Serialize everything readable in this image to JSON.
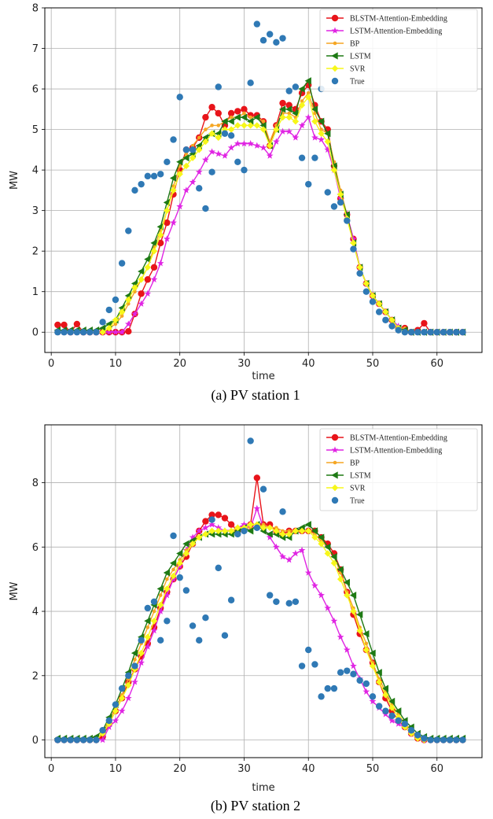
{
  "colors": {
    "BLSTM-Attention-Embedding": "#e8141a",
    "LSTM-Attention-Embedding": "#e025e3",
    "BP": "#f5a623",
    "LSTM": "#1e7a14",
    "SVR": "#f7f71a",
    "True": "#2f79b5"
  },
  "chart_data": [
    {
      "type": "line",
      "caption": "(a) PV station 1",
      "xlabel": "time",
      "ylabel": "MW",
      "xlim": [
        -1,
        67
      ],
      "ylim": [
        -0.5,
        8
      ],
      "xticks": [
        0,
        10,
        20,
        30,
        40,
        50,
        60
      ],
      "yticks": [
        0,
        1,
        2,
        3,
        4,
        5,
        6,
        7,
        8
      ],
      "grid": true,
      "legend_position": "top-right",
      "x_start": 1,
      "series": [
        {
          "name": "BLSTM-Attention-Embedding",
          "marker": "circle",
          "values": [
            0.18,
            0.18,
            0,
            0.2,
            0,
            0,
            0,
            0,
            0,
            0,
            0,
            0.02,
            0.45,
            0.95,
            1.3,
            1.6,
            2.2,
            2.7,
            3.4,
            4.0,
            4.5,
            4.55,
            4.8,
            5.3,
            5.55,
            5.4,
            5.1,
            5.4,
            5.45,
            5.5,
            5.35,
            5.35,
            5.2,
            4.6,
            5.1,
            5.65,
            5.6,
            5.5,
            5.9,
            6.1,
            5.6,
            5.2,
            5.0,
            4.1,
            3.3,
            2.9,
            2.3,
            1.6,
            1.2,
            0.9,
            0.7,
            0.5,
            0.3,
            0.1,
            0.1,
            0,
            0.05,
            0.22,
            0,
            0,
            0,
            0,
            0,
            0
          ]
        },
        {
          "name": "LSTM-Attention-Embedding",
          "marker": "star",
          "values": [
            0,
            0,
            0,
            0,
            0,
            0,
            0,
            0,
            0,
            0,
            0,
            0.2,
            0.45,
            0.7,
            0.95,
            1.3,
            1.7,
            2.3,
            2.7,
            3.1,
            3.5,
            3.7,
            3.95,
            4.25,
            4.45,
            4.4,
            4.35,
            4.55,
            4.65,
            4.65,
            4.65,
            4.6,
            4.55,
            4.35,
            4.7,
            4.95,
            4.95,
            4.8,
            5.1,
            5.3,
            4.8,
            4.75,
            4.5,
            4.0,
            3.3,
            2.9,
            2.3,
            1.6,
            1.2,
            0.9,
            0.7,
            0.5,
            0.3,
            0.15,
            0.05,
            0,
            0,
            0,
            0,
            0,
            0,
            0,
            0,
            0
          ]
        },
        {
          "name": "BP",
          "marker": "dot",
          "values": [
            0,
            0,
            0,
            0,
            0,
            0,
            0,
            0,
            0.1,
            0.2,
            0.4,
            0.7,
            1.0,
            1.3,
            1.6,
            2.1,
            2.5,
            3.0,
            3.6,
            4.1,
            4.4,
            4.6,
            4.8,
            5.0,
            5.1,
            5.1,
            5.2,
            5.3,
            5.3,
            5.4,
            5.3,
            5.3,
            5.2,
            4.7,
            5.1,
            5.4,
            5.4,
            5.3,
            5.7,
            5.9,
            5.4,
            5.0,
            4.9,
            4.2,
            3.5,
            2.9,
            2.2,
            1.6,
            1.2,
            0.9,
            0.7,
            0.5,
            0.3,
            0.1,
            0.1,
            0,
            0,
            0,
            0,
            0,
            0,
            0,
            0,
            0
          ]
        },
        {
          "name": "LSTM",
          "marker": "triangle-left",
          "values": [
            0.05,
            0.05,
            0.05,
            0.05,
            0.05,
            0.05,
            0.05,
            0.1,
            0.2,
            0.3,
            0.6,
            0.9,
            1.2,
            1.5,
            1.8,
            2.2,
            2.6,
            3.2,
            3.8,
            4.2,
            4.3,
            4.4,
            4.6,
            4.8,
            4.9,
            4.9,
            5.2,
            5.2,
            5.3,
            5.3,
            5.2,
            5.3,
            5.1,
            4.6,
            5.0,
            5.5,
            5.5,
            5.4,
            6.0,
            6.2,
            5.5,
            5.2,
            4.9,
            4.1,
            3.4,
            2.9,
            2.2,
            1.6,
            1.2,
            0.9,
            0.7,
            0.5,
            0.3,
            0.1,
            0.05,
            0,
            0,
            0,
            0,
            0,
            0,
            0,
            0,
            0
          ]
        },
        {
          "name": "SVR",
          "marker": "diamond",
          "values": [
            0,
            0,
            0,
            0,
            0,
            0,
            0,
            0,
            0.1,
            0.3,
            0.5,
            0.8,
            1.1,
            1.3,
            1.6,
            2.0,
            2.4,
            3.0,
            3.5,
            3.9,
            4.1,
            4.3,
            4.5,
            4.7,
            4.9,
            4.8,
            5.0,
            5.0,
            5.1,
            5.1,
            5.1,
            5.1,
            5.0,
            4.6,
            5.0,
            5.3,
            5.3,
            5.2,
            5.6,
            5.8,
            5.2,
            4.9,
            4.7,
            4.0,
            3.4,
            2.8,
            2.2,
            1.6,
            1.2,
            0.9,
            0.7,
            0.5,
            0.3,
            0.1,
            0,
            0,
            0,
            0,
            0,
            0,
            0,
            0,
            0,
            0
          ]
        },
        {
          "name": "True",
          "marker": "scatter",
          "values": [
            0,
            0,
            0,
            0,
            0,
            0,
            0,
            0.25,
            0.55,
            0.8,
            1.7,
            2.5,
            3.5,
            3.65,
            3.85,
            3.85,
            3.9,
            4.2,
            4.75,
            5.8,
            4.5,
            4.5,
            3.55,
            3.05,
            3.95,
            6.05,
            4.9,
            4.85,
            4.2,
            4.0,
            6.15,
            7.6,
            7.2,
            7.35,
            7.15,
            7.25,
            5.95,
            6.05,
            4.3,
            3.65,
            4.3,
            6.0,
            3.45,
            3.1,
            3.2,
            2.75,
            2.05,
            1.45,
            1.0,
            0.75,
            0.5,
            0.3,
            0.15,
            0.05,
            0,
            0,
            0,
            0,
            0,
            0,
            0,
            0,
            0,
            0
          ]
        }
      ]
    },
    {
      "type": "line",
      "caption": "(b) PV station 2",
      "xlabel": "time",
      "ylabel": "MW",
      "xlim": [
        -1,
        67
      ],
      "ylim": [
        -0.55,
        9.8
      ],
      "xticks": [
        0,
        10,
        20,
        30,
        40,
        50,
        60
      ],
      "yticks": [
        0,
        2,
        4,
        6,
        8
      ],
      "grid": true,
      "legend_position": "top-right",
      "x_start": 1,
      "series": [
        {
          "name": "BLSTM-Attention-Embedding",
          "marker": "circle",
          "values": [
            0,
            0,
            0,
            0,
            0,
            0,
            0,
            0.1,
            0.5,
            0.9,
            1.3,
            1.8,
            2.2,
            2.6,
            3.0,
            3.5,
            4.1,
            4.6,
            5.0,
            5.4,
            5.7,
            6.1,
            6.5,
            6.8,
            7.0,
            7.0,
            6.9,
            6.7,
            6.5,
            6.6,
            6.7,
            8.15,
            6.7,
            6.7,
            6.5,
            6.4,
            6.5,
            6.5,
            6.5,
            6.5,
            6.5,
            6.3,
            6.1,
            5.8,
            5.3,
            4.6,
            3.9,
            3.3,
            2.8,
            2.4,
            1.8,
            1.3,
            0.9,
            0.6,
            0.4,
            0.2,
            0.05,
            0,
            0,
            0,
            0,
            0,
            0,
            0
          ]
        },
        {
          "name": "LSTM-Attention-Embedding",
          "marker": "star",
          "values": [
            0,
            0,
            0,
            0,
            0,
            0,
            0,
            0,
            0.4,
            0.6,
            0.9,
            1.3,
            1.8,
            2.4,
            2.9,
            3.4,
            4.0,
            4.5,
            5.0,
            5.4,
            5.9,
            6.3,
            6.5,
            6.6,
            6.7,
            6.6,
            6.5,
            6.5,
            6.6,
            6.7,
            6.6,
            7.2,
            6.6,
            6.3,
            6.0,
            5.7,
            5.6,
            5.8,
            5.9,
            5.2,
            4.8,
            4.5,
            4.1,
            3.7,
            3.2,
            2.8,
            2.3,
            1.9,
            1.5,
            1.2,
            1.0,
            0.8,
            0.6,
            0.5,
            0.4,
            0.2,
            0.1,
            0,
            0,
            0,
            0,
            0,
            0,
            0
          ]
        },
        {
          "name": "BP",
          "marker": "dot",
          "values": [
            0,
            0,
            0,
            0,
            0,
            0,
            0,
            0.2,
            0.6,
            1.0,
            1.4,
            1.9,
            2.5,
            3.0,
            3.5,
            4.0,
            4.5,
            5.0,
            5.3,
            5.6,
            5.9,
            6.1,
            6.3,
            6.4,
            6.5,
            6.5,
            6.5,
            6.5,
            6.6,
            6.6,
            6.6,
            6.6,
            6.7,
            6.6,
            6.6,
            6.5,
            6.5,
            6.5,
            6.5,
            6.5,
            6.4,
            6.2,
            6.0,
            5.7,
            5.2,
            4.6,
            4.1,
            3.5,
            3.0,
            2.4,
            1.9,
            1.5,
            1.1,
            0.8,
            0.5,
            0.3,
            0.1,
            0,
            0,
            0,
            0,
            0,
            0,
            0
          ]
        },
        {
          "name": "LSTM",
          "marker": "triangle-left",
          "values": [
            0.05,
            0.05,
            0.05,
            0.05,
            0.05,
            0.05,
            0.1,
            0.3,
            0.7,
            1.1,
            1.6,
            2.1,
            2.7,
            3.2,
            3.7,
            4.2,
            4.7,
            5.2,
            5.5,
            5.8,
            6.1,
            6.2,
            6.3,
            6.4,
            6.4,
            6.4,
            6.4,
            6.4,
            6.5,
            6.6,
            6.5,
            6.7,
            6.5,
            6.4,
            6.4,
            6.3,
            6.3,
            6.5,
            6.6,
            6.7,
            6.5,
            6.3,
            6.0,
            5.7,
            5.3,
            4.9,
            4.5,
            3.9,
            3.3,
            2.7,
            2.1,
            1.6,
            1.2,
            0.9,
            0.6,
            0.4,
            0.2,
            0.1,
            0.05,
            0.05,
            0.05,
            0.05,
            0.05,
            0.05
          ]
        },
        {
          "name": "SVR",
          "marker": "diamond",
          "values": [
            0,
            0,
            0,
            0,
            0,
            0,
            0,
            0.2,
            0.5,
            0.9,
            1.3,
            1.7,
            2.2,
            2.7,
            3.2,
            3.7,
            4.2,
            4.7,
            5.1,
            5.5,
            5.8,
            6.1,
            6.3,
            6.4,
            6.5,
            6.5,
            6.5,
            6.5,
            6.6,
            6.6,
            6.7,
            6.7,
            6.6,
            6.6,
            6.5,
            6.4,
            6.4,
            6.5,
            6.5,
            6.5,
            6.3,
            6.1,
            5.8,
            5.5,
            5.0,
            4.5,
            4.0,
            3.4,
            2.8,
            2.3,
            1.8,
            1.4,
            1.0,
            0.7,
            0.4,
            0.2,
            0.05,
            0,
            0,
            0,
            0,
            0,
            0,
            0
          ]
        },
        {
          "name": "True",
          "marker": "scatter",
          "values": [
            0,
            0,
            0,
            0,
            0,
            0,
            0,
            0.3,
            0.6,
            1.1,
            1.6,
            2.0,
            2.3,
            3.1,
            4.1,
            4.3,
            3.1,
            3.7,
            6.35,
            5.05,
            4.65,
            3.55,
            3.1,
            3.8,
            6.85,
            5.35,
            3.25,
            4.35,
            6.4,
            6.5,
            9.3,
            6.6,
            7.8,
            4.5,
            4.3,
            7.1,
            4.25,
            4.3,
            2.3,
            2.8,
            2.35,
            1.35,
            1.6,
            1.6,
            2.1,
            2.15,
            2.05,
            1.85,
            1.75,
            1.35,
            1.05,
            0.9,
            0.75,
            0.6,
            0.5,
            0.3,
            0.15,
            0.05,
            0,
            0,
            0,
            0,
            0,
            0
          ]
        }
      ]
    }
  ]
}
